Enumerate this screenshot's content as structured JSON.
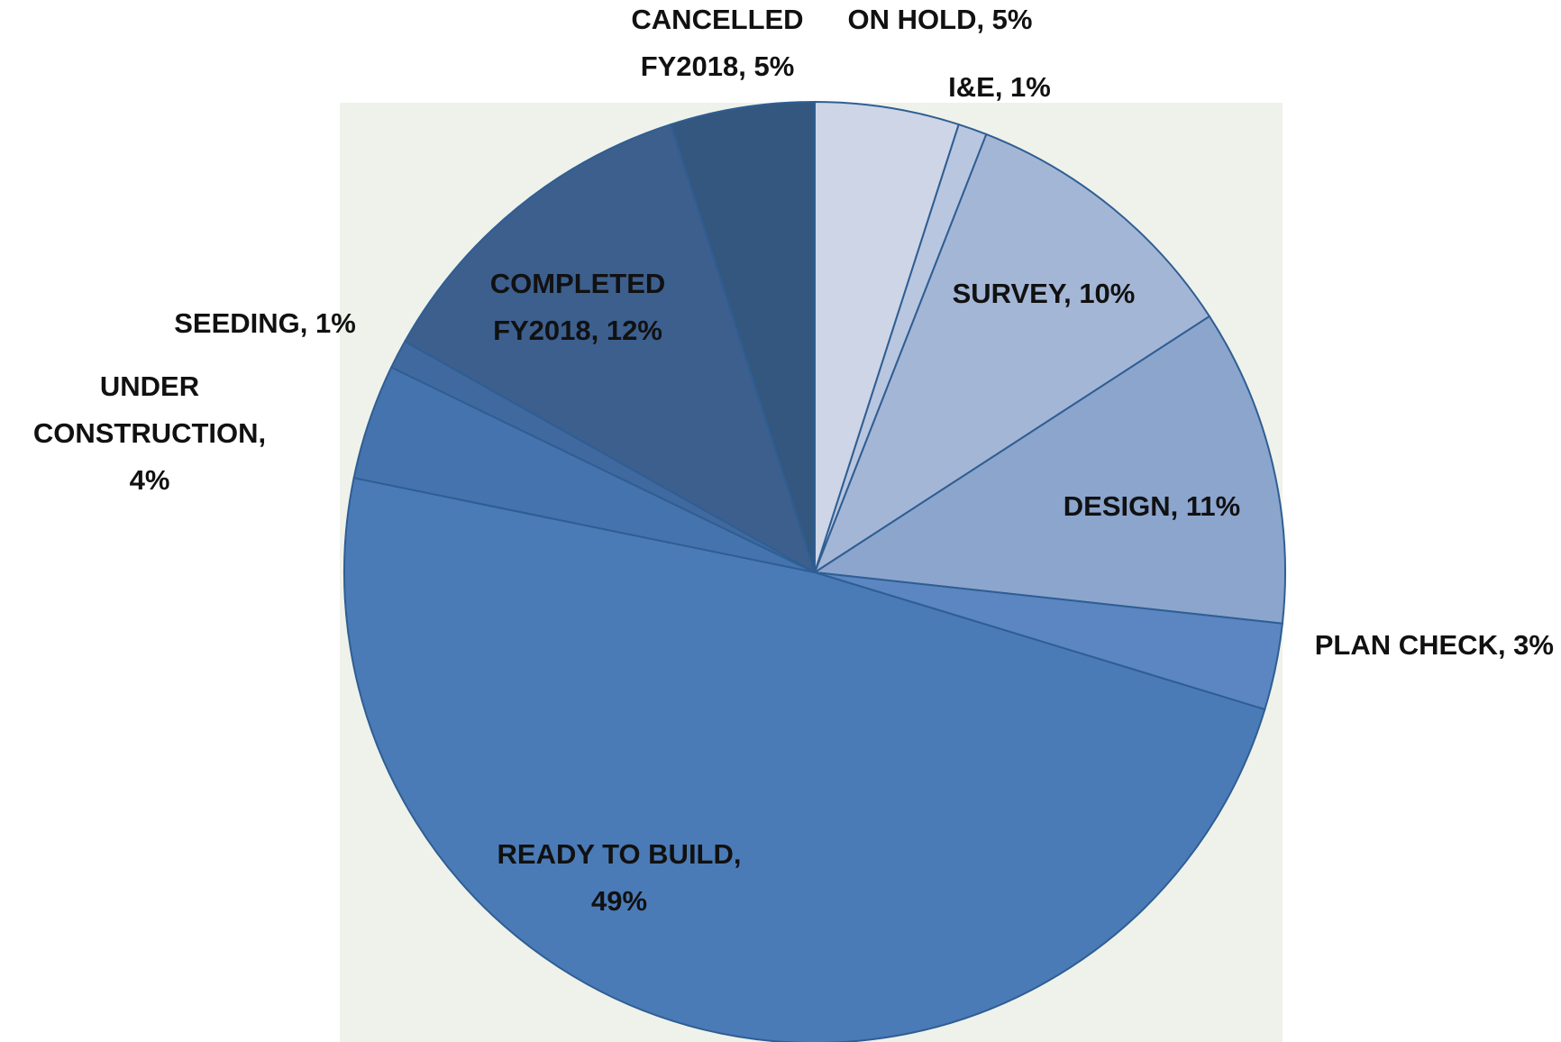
{
  "chart_data": {
    "type": "pie",
    "values": [
      5,
      1,
      10,
      11,
      3,
      49,
      4,
      1,
      12,
      5
    ],
    "value_labels": [
      "ON HOLD, 5%",
      "I&E, 1%",
      "SURVEY, 10%",
      "DESIGN, 11%",
      "PLAN CHECK, 3%",
      "READY TO BUILD,\n49%",
      "UNDER\nCONSTRUCTION,\n4%",
      "SEEDING, 1%",
      "COMPLETED\nFY2018, 12%",
      "CANCELLED\nFY2018, 5%"
    ],
    "colors": [
      "#cdd5e6",
      "#b9c6df",
      "#a4b6d6",
      "#8ba5cd",
      "#5b86c1",
      "#4a7bb7",
      "#4573ad",
      "#40699f",
      "#3c5f8e",
      "#33577f"
    ]
  }
}
